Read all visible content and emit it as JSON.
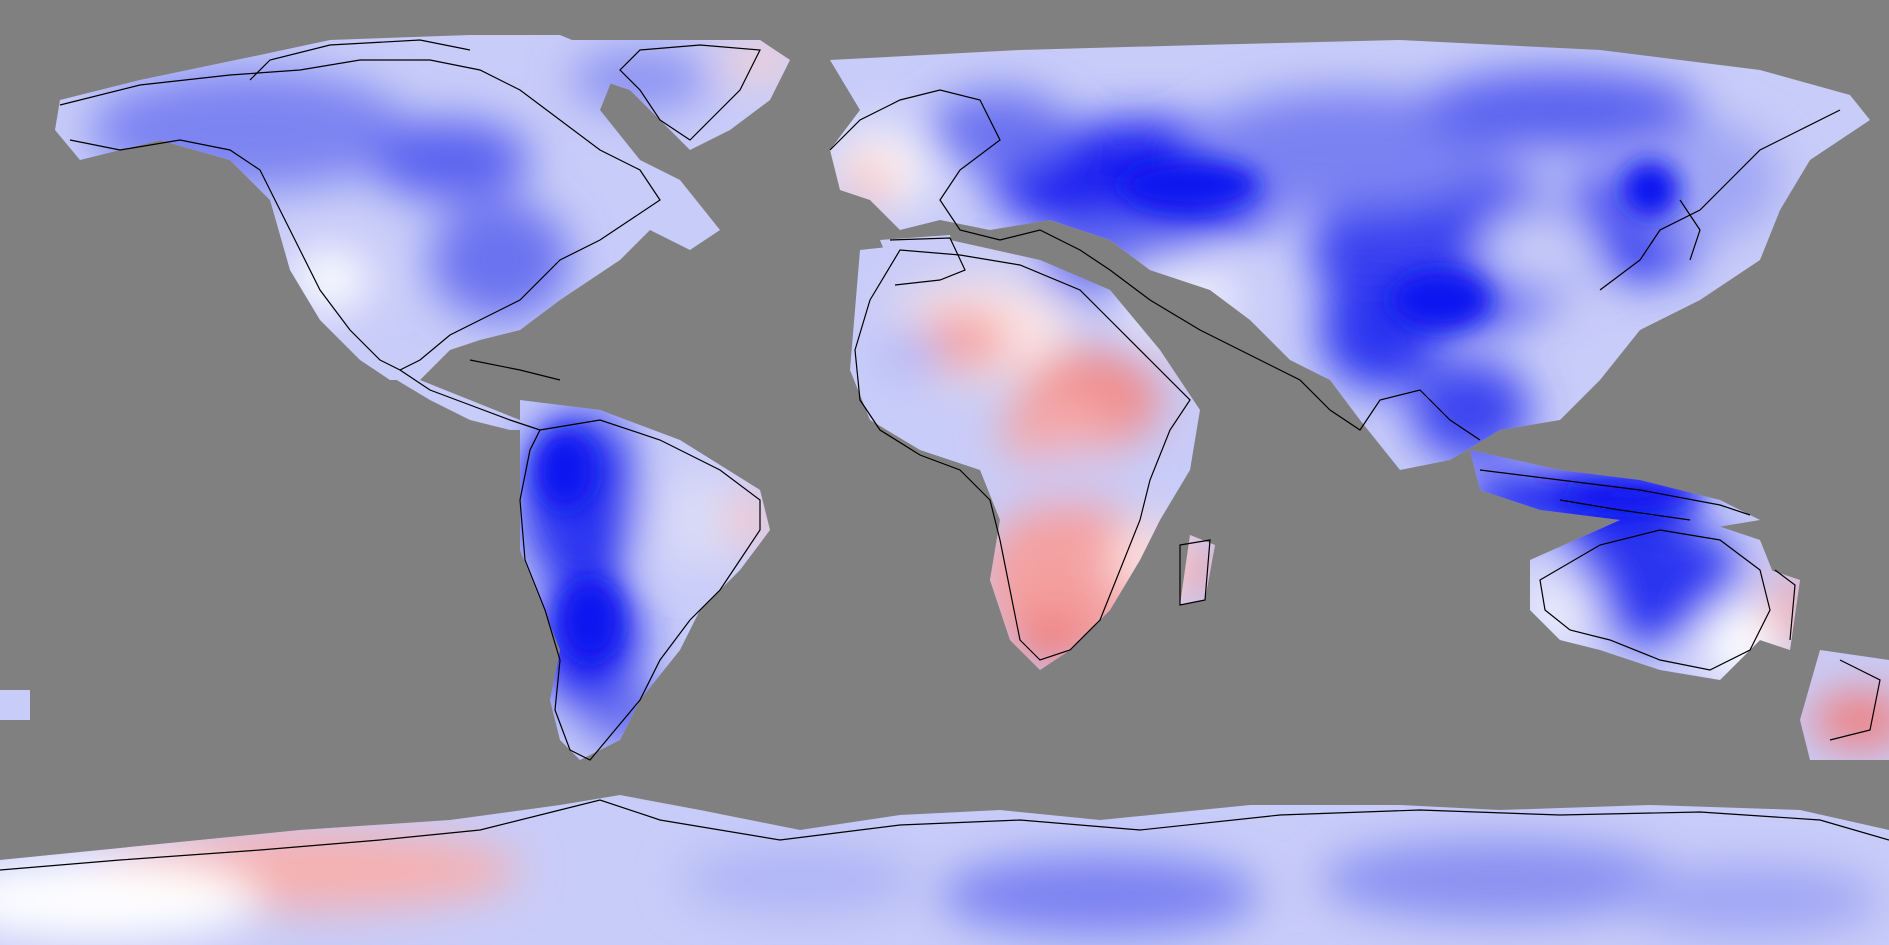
{
  "map": {
    "projection": "equirectangular",
    "colors": {
      "background": "#808080",
      "strong_negative": "#0a14f0",
      "negative": "#6a72f0",
      "weak_negative": "#c8ccf8",
      "neutral": "#ffffff",
      "weak_positive": "#f8c8c8",
      "positive": "#f08080",
      "coastline": "#000000"
    },
    "has_legend": false,
    "has_title": false
  }
}
